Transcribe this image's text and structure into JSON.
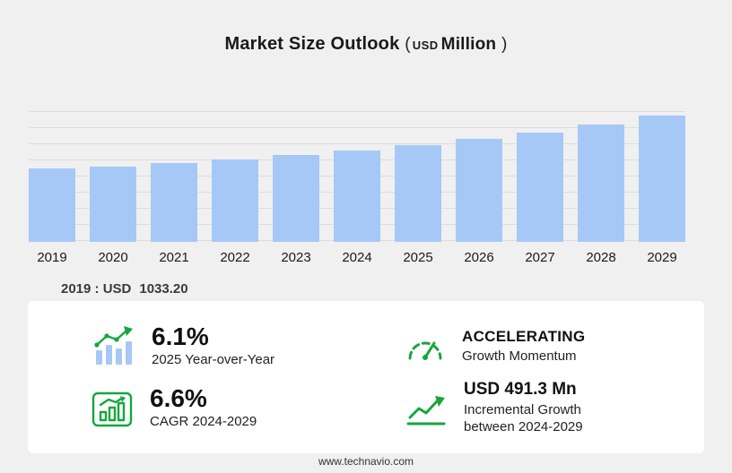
{
  "colors": {
    "accent_green": "#16a63e",
    "bar_blue": "#a6c8f7",
    "background": "#f0f0f0",
    "card_background": "#ffffff"
  },
  "title": {
    "main": "Market Size Outlook",
    "unit_open": "(",
    "unit_currency": "USD",
    "unit_word": "Million",
    "unit_close": ")"
  },
  "chart_data": {
    "type": "bar",
    "title": "Market Size Outlook (USD Million)",
    "categories": [
      "2019",
      "2020",
      "2021",
      "2022",
      "2023",
      "2024",
      "2025",
      "2026",
      "2027",
      "2028",
      "2029"
    ],
    "values": [
      1033.2,
      1065,
      1115,
      1170,
      1230,
      1290,
      1368.7,
      1455,
      1548,
      1660,
      1781.3
    ],
    "xlabel": "",
    "ylabel": "",
    "ylim": [
      0,
      1850
    ],
    "grid": true,
    "legend": false,
    "bar_color": "#a6c8f7"
  },
  "note": {
    "label": "2019 : USD",
    "value": "1033.20"
  },
  "stats": [
    {
      "icon": "bar-growth-icon",
      "value": "6.1%",
      "label": "2025 Year-over-Year"
    },
    {
      "icon": "speedometer-icon",
      "value": "ACCELERATING",
      "label": "Growth Momentum"
    },
    {
      "icon": "cagr-chart-icon",
      "value": "6.6%",
      "label": "CAGR 2024-2029"
    },
    {
      "icon": "growth-arrow-icon",
      "value": "USD 491.3 Mn",
      "label": "Incremental Growth between 2024-2029"
    }
  ],
  "footer": {
    "url": "www.technavio.com"
  }
}
